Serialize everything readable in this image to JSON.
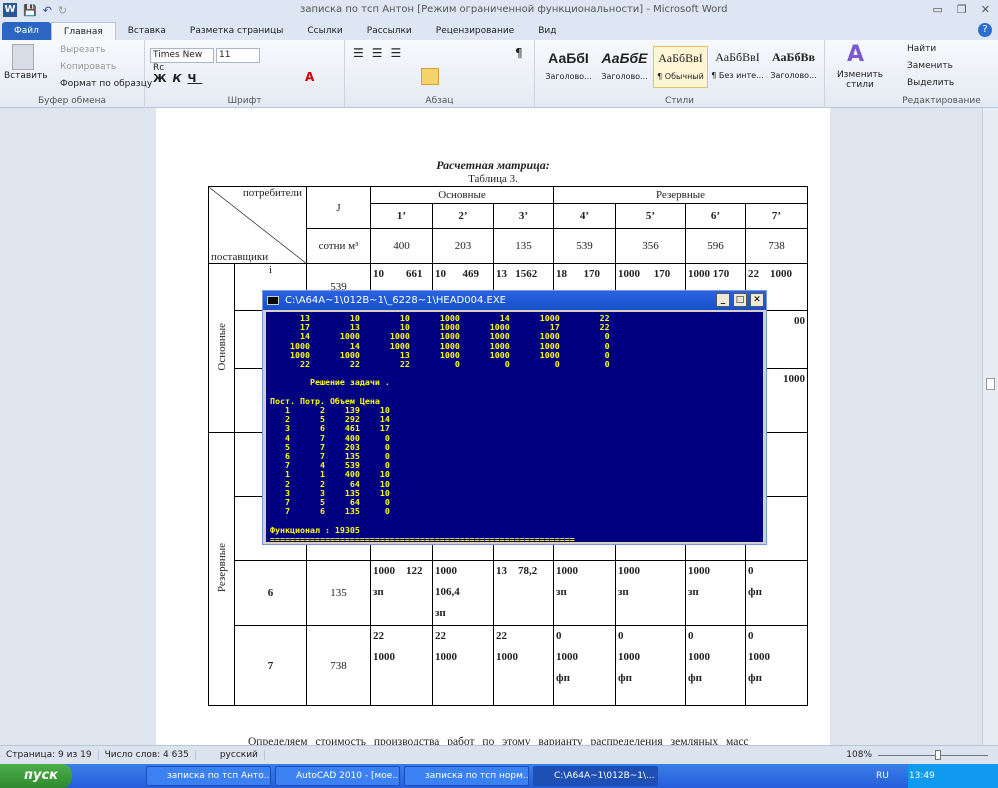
{
  "window": {
    "title": "записка по тсп Антон [Режим ограниченной функциональности] - Microsoft Word",
    "controls": [
      "▭",
      "❐",
      "✕"
    ]
  },
  "tabs": [
    "Файл",
    "Главная",
    "Вставка",
    "Разметка страницы",
    "Ссылки",
    "Рассылки",
    "Рецензирование",
    "Вид"
  ],
  "ribbon": {
    "clipboard": {
      "label": "Буфер обмена",
      "paste": "Вставить",
      "cut": "Вырезать",
      "copy": "Копировать",
      "format_painter": "Формат по образцу"
    },
    "font": {
      "label": "Шрифт",
      "font_name": "Times New Rc",
      "font_size": "11"
    },
    "paragraph": {
      "label": "Абзац"
    },
    "styles": {
      "label": "Стили",
      "items": [
        {
          "sample": "АаБбІ",
          "name": "Заголово..."
        },
        {
          "sample": "АаБбЕ",
          "name": "Заголово..."
        },
        {
          "sample": "АаБбВвІ",
          "name": "¶ Обычный"
        },
        {
          "sample": "АаБбВвІ",
          "name": "¶ Без инте..."
        },
        {
          "sample": "АаБбВв",
          "name": "Заголово..."
        }
      ],
      "change": "Изменить стили"
    },
    "editing": {
      "label": "Редактирование",
      "find": "Найти",
      "replace": "Заменить",
      "select": "Выделить"
    }
  },
  "document": {
    "caption": "Расчетная матрица:",
    "table_label": "Таблица 3.",
    "table": {
      "corner_top": "потребители",
      "corner_bottom": "поставщики",
      "j_header": "J",
      "group_main": "Основные",
      "group_reserve": "Резервные",
      "consumers": [
        "1’",
        "2’",
        "3’",
        "4’",
        "5’",
        "6’",
        "7’"
      ],
      "units": "сотни м³",
      "demand": [
        "400",
        "203",
        "135",
        "539",
        "356",
        "596",
        "738"
      ],
      "row_groups": [
        "Основные",
        "Резервные"
      ],
      "row1": {
        "label": "i",
        "supply": "539",
        "cells": [
          "10        661",
          "10      469",
          "13   1562",
          "18      170",
          "1000     170",
          "1000 170",
          "22    1000"
        ]
      },
      "row2_partial": "00",
      "row3_partial": "1000",
      "row6": {
        "label": "6",
        "supply": "135",
        "cells": [
          "1000    122\nзп",
          "1000\n106,4\nзп",
          "13    78,2",
          "1000\nзп",
          "1000\nзп",
          "1000\nзп",
          "0\nфп"
        ]
      },
      "row7": {
        "label": "7",
        "supply": "738",
        "cells": [
          "22\n1000",
          "22\n1000",
          "22\n1000",
          "0\n1000\nфп",
          "0\n1000\nфп",
          "0\n1000\nфп",
          "0\n1000\nфп"
        ]
      }
    },
    "paragraph": "Определяем стоимость производства работ по этому варианту распределения земляных масс"
  },
  "console": {
    "title": "C:\\A64A~1\\012B~1\\_6228~1\\HEAD004.EXE",
    "matrix": [
      [
        "13",
        "10",
        "10",
        "1000",
        "14",
        "1000",
        "22"
      ],
      [
        "17",
        "13",
        "10",
        "1000",
        "1000",
        "17",
        "22"
      ],
      [
        "14",
        "1000",
        "1000",
        "1000",
        "1000",
        "1000",
        "0"
      ],
      [
        "1000",
        "14",
        "1000",
        "1000",
        "1000",
        "1000",
        "0"
      ],
      [
        "1000",
        "1000",
        "13",
        "1000",
        "1000",
        "1000",
        "0"
      ],
      [
        "22",
        "22",
        "22",
        "0",
        "0",
        "0",
        "0"
      ]
    ],
    "solution_title": "Решение задачи .",
    "headers": [
      "Пост.",
      "Потр.",
      "Объем",
      "Цена"
    ],
    "rows": [
      [
        "1",
        "2",
        "139",
        "10"
      ],
      [
        "2",
        "5",
        "292",
        "14"
      ],
      [
        "3",
        "6",
        "461",
        "17"
      ],
      [
        "4",
        "7",
        "400",
        "0"
      ],
      [
        "5",
        "7",
        "203",
        "0"
      ],
      [
        "6",
        "7",
        "135",
        "0"
      ],
      [
        "7",
        "4",
        "539",
        "0"
      ],
      [
        "1",
        "1",
        "400",
        "10"
      ],
      [
        "2",
        "2",
        "64",
        "10"
      ],
      [
        "3",
        "3",
        "135",
        "10"
      ],
      [
        "7",
        "5",
        "64",
        "0"
      ],
      [
        "7",
        "6",
        "135",
        "0"
      ]
    ],
    "functional": "Функционал : 19305"
  },
  "status": {
    "page": "Страница: 9 из 19",
    "words": "Число слов: 4 635",
    "language": "русский",
    "zoom": "108%",
    "zoom_level": 108
  },
  "taskbar": {
    "start": "пуск",
    "tasks": [
      "записка по тсп Анто...",
      "AutoCAD 2010 - [мое...",
      "записка по тсп норм...",
      "C:\\A64A~1\\012B~1\\..."
    ],
    "lang": "RU",
    "time": "13:49"
  }
}
